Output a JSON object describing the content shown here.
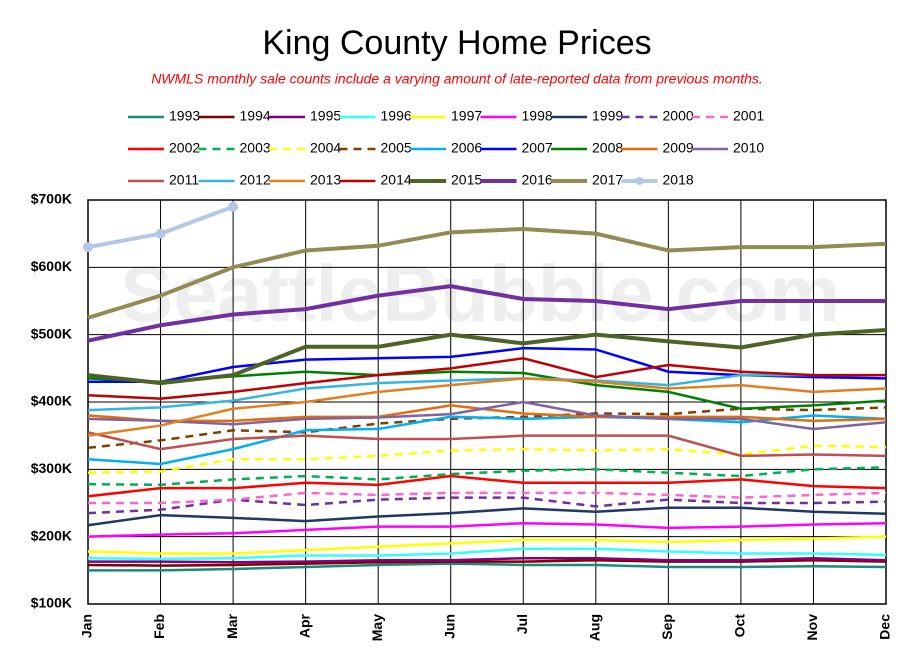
{
  "chart_data": {
    "type": "line",
    "title": "King County Home Prices",
    "subtitle": "NWMLS monthly sale counts include a varying amount of late-reported data from previous months.",
    "watermark": "SeattleBubble.com",
    "categories": [
      "Jan",
      "Feb",
      "Mar",
      "Apr",
      "May",
      "Jun",
      "Jul",
      "Aug",
      "Sep",
      "Oct",
      "Nov",
      "Dec"
    ],
    "ylim": [
      100000,
      700000
    ],
    "yticks": [
      {
        "value": 100000,
        "label": "$100K"
      },
      {
        "value": 200000,
        "label": "$200K"
      },
      {
        "value": 300000,
        "label": "$300K"
      },
      {
        "value": 400000,
        "label": "$400K"
      },
      {
        "value": 500000,
        "label": "$500K"
      },
      {
        "value": 600000,
        "label": "$600K"
      },
      {
        "value": 700000,
        "label": "$700K"
      }
    ],
    "grid": true,
    "series": [
      {
        "name": "1993",
        "color": "#1a8a80",
        "values": [
          150000,
          150000,
          152000,
          155000,
          158000,
          160000,
          158000,
          158000,
          155000,
          155000,
          156000,
          155000
        ]
      },
      {
        "name": "1994",
        "color": "#7f0000",
        "values": [
          158000,
          157000,
          158000,
          160000,
          162000,
          163000,
          163000,
          165000,
          163000,
          163000,
          165000,
          163000
        ]
      },
      {
        "name": "1995",
        "color": "#800080",
        "values": [
          163000,
          163000,
          162000,
          163000,
          165000,
          165000,
          168000,
          168000,
          165000,
          165000,
          168000,
          165000
        ]
      },
      {
        "name": "1996",
        "color": "#33ffff",
        "values": [
          168000,
          167000,
          168000,
          172000,
          172000,
          175000,
          182000,
          182000,
          178000,
          175000,
          175000,
          173000
        ]
      },
      {
        "name": "1997",
        "color": "#ffff00",
        "values": [
          178000,
          175000,
          175000,
          180000,
          185000,
          190000,
          195000,
          195000,
          192000,
          195000,
          197000,
          200000
        ]
      },
      {
        "name": "1998",
        "color": "#ff00ff",
        "values": [
          200000,
          203000,
          205000,
          210000,
          215000,
          215000,
          220000,
          218000,
          213000,
          215000,
          218000,
          220000
        ]
      },
      {
        "name": "1999",
        "color": "#1f3864",
        "values": [
          217000,
          232000,
          228000,
          223000,
          230000,
          235000,
          242000,
          237000,
          243000,
          243000,
          237000,
          234000
        ]
      },
      {
        "name": "2000",
        "color": "#7030a0",
        "dashed": true,
        "values": [
          235000,
          240000,
          255000,
          247000,
          255000,
          258000,
          258000,
          245000,
          255000,
          250000,
          250000,
          252000
        ]
      },
      {
        "name": "2001",
        "color": "#ff66cc",
        "dashed": true,
        "values": [
          250000,
          250000,
          255000,
          265000,
          262000,
          265000,
          265000,
          265000,
          262000,
          258000,
          262000,
          265000
        ]
      },
      {
        "name": "2002",
        "color": "#ff0000",
        "values": [
          260000,
          272000,
          272000,
          280000,
          277000,
          290000,
          280000,
          280000,
          280000,
          285000,
          275000,
          272000
        ]
      },
      {
        "name": "2003",
        "color": "#00b050",
        "dashed": true,
        "values": [
          278000,
          277000,
          285000,
          290000,
          285000,
          293000,
          298000,
          300000,
          295000,
          290000,
          300000,
          303000
        ]
      },
      {
        "name": "2004",
        "color": "#ffff00",
        "dashed": true,
        "values": [
          295000,
          297000,
          315000,
          315000,
          320000,
          328000,
          330000,
          328000,
          330000,
          322000,
          335000,
          333000
        ]
      },
      {
        "name": "2005",
        "color": "#7f3f00",
        "dashed": true,
        "values": [
          332000,
          343000,
          358000,
          355000,
          368000,
          375000,
          378000,
          383000,
          382000,
          390000,
          388000,
          392000
        ]
      },
      {
        "name": "2006",
        "color": "#00b0f0",
        "values": [
          315000,
          308000,
          330000,
          358000,
          360000,
          378000,
          375000,
          378000,
          375000,
          370000,
          380000,
          375000
        ]
      },
      {
        "name": "2007",
        "color": "#0000ff",
        "values": [
          430000,
          430000,
          452000,
          463000,
          465000,
          467000,
          480000,
          478000,
          445000,
          440000,
          437000,
          435000
        ]
      },
      {
        "name": "2008",
        "color": "#008000",
        "values": [
          435000,
          430000,
          438000,
          445000,
          440000,
          445000,
          443000,
          425000,
          415000,
          390000,
          395000,
          402000
        ]
      },
      {
        "name": "2009",
        "color": "#e46c0a",
        "values": [
          380000,
          372000,
          372000,
          378000,
          378000,
          395000,
          383000,
          378000,
          378000,
          378000,
          372000,
          375000
        ]
      },
      {
        "name": "2010",
        "color": "#8064a2",
        "values": [
          375000,
          372000,
          367000,
          375000,
          377000,
          382000,
          400000,
          380000,
          375000,
          375000,
          360000,
          370000
        ]
      },
      {
        "name": "2011",
        "color": "#c0504d",
        "values": [
          355000,
          330000,
          345000,
          350000,
          345000,
          345000,
          350000,
          350000,
          350000,
          320000,
          322000,
          320000
        ]
      },
      {
        "name": "2012",
        "color": "#33b5e5",
        "values": [
          388000,
          392000,
          402000,
          420000,
          428000,
          432000,
          435000,
          432000,
          425000,
          440000,
          440000,
          440000
        ]
      },
      {
        "name": "2013",
        "color": "#e08020",
        "values": [
          350000,
          365000,
          390000,
          400000,
          415000,
          425000,
          435000,
          430000,
          420000,
          425000,
          415000,
          420000
        ]
      },
      {
        "name": "2014",
        "color": "#c00000",
        "values": [
          410000,
          405000,
          415000,
          428000,
          440000,
          450000,
          465000,
          437000,
          455000,
          445000,
          440000,
          440000
        ]
      },
      {
        "name": "2015",
        "color": "#4f6228",
        "width": 4,
        "values": [
          440000,
          428000,
          440000,
          482000,
          482000,
          500000,
          487000,
          500000,
          490000,
          481000,
          500000,
          507000
        ]
      },
      {
        "name": "2016",
        "color": "#7030a0",
        "width": 4,
        "values": [
          491000,
          514000,
          530000,
          538000,
          558000,
          572000,
          553000,
          550000,
          538000,
          550000,
          550000,
          550000
        ]
      },
      {
        "name": "2017",
        "color": "#948a54",
        "width": 4,
        "values": [
          525000,
          558000,
          600000,
          625000,
          632000,
          652000,
          657000,
          650000,
          625000,
          630000,
          630000,
          635000
        ]
      },
      {
        "name": "2018",
        "color": "#b4c7e7",
        "width": 4,
        "markers": true,
        "values": [
          630000,
          650000,
          690000,
          null,
          null,
          null,
          null,
          null,
          null,
          null,
          null,
          null
        ]
      }
    ]
  }
}
